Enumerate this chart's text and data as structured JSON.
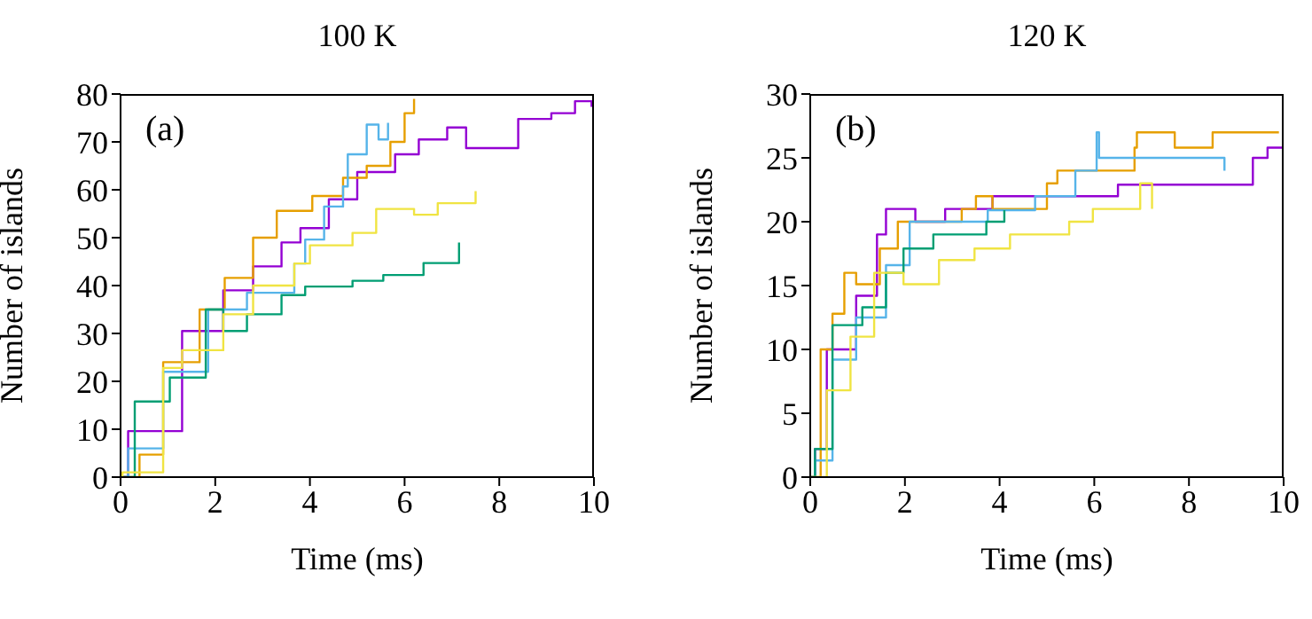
{
  "chart_data": [
    {
      "type": "step",
      "title": "100 K",
      "xlabel": "Time (ms)",
      "ylabel": "Number of islands",
      "annotations": [
        "(a)"
      ],
      "xlim": [
        0,
        10
      ],
      "xticks": [
        0,
        2,
        4,
        6,
        8,
        10
      ],
      "ylim": [
        0,
        80
      ],
      "yticks": [
        0,
        10,
        20,
        30,
        40,
        50,
        60,
        70,
        80
      ],
      "grid": false,
      "legend": false,
      "marker": "none",
      "line_style": "solid",
      "series": [
        {
          "color": "#9400d3",
          "x": [
            0,
            0.16,
            1.3,
            2.17,
            2.8,
            3.4,
            3.8,
            4.4,
            5.0,
            5.8,
            6.3,
            6.9,
            7.3,
            8.2,
            8.4,
            9.1,
            9.6,
            9.95
          ],
          "values": [
            0,
            9.6,
            30.5,
            39,
            44,
            49,
            52,
            58,
            63.7,
            67.4,
            70.5,
            73,
            68.7,
            68.7,
            74.8,
            76,
            78.5,
            77.3
          ]
        },
        {
          "color": "#e69f00",
          "x": [
            0,
            0.4,
            0.9,
            1.67,
            2.2,
            2.8,
            3.3,
            4.05,
            4.7,
            5.2,
            5.7,
            6.0,
            6.2
          ],
          "values": [
            0,
            4.7,
            24,
            35,
            41.6,
            50,
            55.6,
            58.7,
            62.5,
            65,
            70,
            76,
            79
          ]
        },
        {
          "color": "#56b4e9",
          "x": [
            0,
            0.16,
            0.9,
            1.85,
            2.67,
            3.67,
            3.9,
            4.3,
            4.7,
            4.8,
            5.2,
            5.45,
            5.65
          ],
          "values": [
            0,
            6,
            22,
            35,
            38.5,
            44.6,
            49.6,
            56.5,
            60.7,
            67.4,
            73.6,
            70.5,
            74
          ]
        },
        {
          "color": "#009e73",
          "x": [
            0,
            0.3,
            1.04,
            1.8,
            2.17,
            2.67,
            3.4,
            3.9,
            4.9,
            5.55,
            6.4,
            7.15
          ],
          "values": [
            0,
            15.8,
            20.8,
            35,
            30.5,
            34,
            38,
            39.8,
            41,
            42.2,
            44.7,
            49
          ]
        },
        {
          "color": "#f0e442",
          "x": [
            0,
            0.04,
            0.9,
            1.3,
            2.17,
            2.8,
            3.67,
            4.0,
            4.9,
            5.4,
            6.2,
            6.7,
            7.5
          ],
          "values": [
            0,
            1,
            22.8,
            26.5,
            34,
            40,
            44.6,
            48.4,
            51,
            56,
            54.8,
            57.2,
            59.7
          ]
        }
      ]
    },
    {
      "type": "step",
      "title": "120 K",
      "xlabel": "Time (ms)",
      "ylabel": "Number of islands",
      "annotations": [
        "(b)"
      ],
      "xlim": [
        0,
        10
      ],
      "xticks": [
        0,
        2,
        4,
        6,
        8,
        10
      ],
      "ylim": [
        0,
        30
      ],
      "yticks": [
        0,
        5,
        10,
        15,
        20,
        25,
        30
      ],
      "grid": false,
      "legend": false,
      "marker": "none",
      "line_style": "solid",
      "series": [
        {
          "color": "#9400d3",
          "x": [
            0,
            0.1,
            0.35,
            0.97,
            1.41,
            1.6,
            2.22,
            2.85,
            3.85,
            5.4,
            6.5,
            8.2,
            9.35,
            9.66,
            9.97
          ],
          "values": [
            0,
            2.2,
            10,
            14.2,
            19,
            21,
            20,
            21,
            22,
            22,
            22.9,
            22.9,
            25,
            25.8,
            25.8
          ]
        },
        {
          "color": "#e69f00",
          "x": [
            0,
            0.22,
            0.47,
            0.72,
            0.97,
            1.47,
            1.85,
            3.2,
            3.5,
            3.85,
            5.0,
            5.22,
            6.05,
            6.85,
            6.9,
            7.7,
            8.5,
            9.9
          ],
          "values": [
            0,
            10,
            12.8,
            16,
            15.1,
            17.9,
            20,
            21,
            22,
            21,
            23,
            24,
            24,
            25.8,
            27,
            25.8,
            27,
            27
          ]
        },
        {
          "color": "#56b4e9",
          "x": [
            0,
            0.1,
            0.47,
            0.97,
            1.6,
            2.1,
            3.75,
            4.75,
            5.6,
            6.05,
            6.1,
            8.5,
            8.75
          ],
          "values": [
            0,
            1.3,
            9.2,
            12.5,
            16.6,
            20,
            20.9,
            22,
            24,
            27,
            25,
            25,
            24
          ]
        },
        {
          "color": "#009e73",
          "x": [
            0,
            0.1,
            0.47,
            1.1,
            1.6,
            1.97,
            2.6,
            3.72,
            4.1
          ],
          "values": [
            0,
            2.2,
            11.9,
            13.3,
            16,
            17.9,
            19,
            20,
            20.9
          ]
        },
        {
          "color": "#f0e442",
          "x": [
            0,
            0.35,
            0.85,
            1.35,
            1.97,
            2.72,
            3.47,
            4.22,
            5.47,
            5.97,
            6.97,
            7.22
          ],
          "values": [
            0,
            6.8,
            11,
            16,
            15.1,
            17,
            17.9,
            19,
            20,
            21,
            23,
            21
          ]
        }
      ]
    }
  ]
}
